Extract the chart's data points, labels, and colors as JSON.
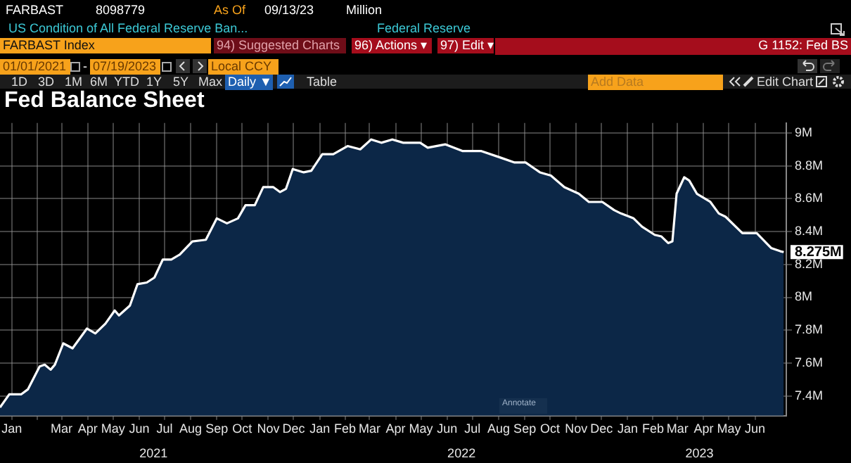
{
  "chart_data": {
    "type": "area",
    "title": "Fed Balance Sheet",
    "x": [
      "2021-01-01",
      "2021-01-12",
      "2021-01-26",
      "2021-02-03",
      "2021-02-17",
      "2021-02-23",
      "2021-03-02",
      "2021-03-07",
      "2021-03-17",
      "2021-03-28",
      "2021-04-14",
      "2021-04-24",
      "2021-05-06",
      "2021-05-17",
      "2021-05-22",
      "2021-06-04",
      "2021-06-13",
      "2021-06-24",
      "2021-07-03",
      "2021-07-13",
      "2021-07-23",
      "2021-08-02",
      "2021-08-17",
      "2021-09-02",
      "2021-09-15",
      "2021-09-27",
      "2021-10-10",
      "2021-10-19",
      "2021-10-30",
      "2021-11-09",
      "2021-11-21",
      "2021-11-29",
      "2021-12-06",
      "2021-12-14",
      "2021-12-27",
      "2022-01-05",
      "2022-01-18",
      "2022-01-31",
      "2022-02-17",
      "2022-03-04",
      "2022-03-17",
      "2022-03-29",
      "2022-04-11",
      "2022-04-24",
      "2022-05-14",
      "2022-05-23",
      "2022-06-13",
      "2022-07-03",
      "2022-07-25",
      "2022-08-17",
      "2022-09-03",
      "2022-09-16",
      "2022-10-03",
      "2022-10-16",
      "2022-11-01",
      "2022-11-18",
      "2022-11-30",
      "2022-12-16",
      "2022-12-30",
      "2023-01-07",
      "2023-01-22",
      "2023-02-01",
      "2023-02-16",
      "2023-02-24",
      "2023-03-04",
      "2023-03-09",
      "2023-03-14",
      "2023-03-23",
      "2023-03-29",
      "2023-04-07",
      "2023-04-23",
      "2023-05-03",
      "2023-05-11",
      "2023-05-31",
      "2023-06-17",
      "2023-07-04",
      "2023-07-15",
      "2023-07-19"
    ],
    "series": [
      {
        "color": "#0c2747",
        "values": [
          7.33,
          7.41,
          7.41,
          7.44,
          7.58,
          7.59,
          7.56,
          7.59,
          7.72,
          7.69,
          7.81,
          7.78,
          7.84,
          7.92,
          7.89,
          7.95,
          8.08,
          8.09,
          8.12,
          8.23,
          8.23,
          8.26,
          8.34,
          8.35,
          8.48,
          8.45,
          8.48,
          8.56,
          8.56,
          8.67,
          8.67,
          8.64,
          8.66,
          8.78,
          8.76,
          8.77,
          8.87,
          8.87,
          8.92,
          8.9,
          8.96,
          8.94,
          8.96,
          8.94,
          8.94,
          8.91,
          8.93,
          8.89,
          8.89,
          8.85,
          8.82,
          8.82,
          8.76,
          8.74,
          8.67,
          8.63,
          8.58,
          8.58,
          8.53,
          8.51,
          8.48,
          8.43,
          8.38,
          8.37,
          8.33,
          8.34,
          8.63,
          8.73,
          8.71,
          8.63,
          8.58,
          8.51,
          8.49,
          8.39,
          8.39,
          8.3,
          8.28,
          8.275
        ]
      }
    ],
    "xlim": [
      "2021-01-01",
      "2023-07-22"
    ],
    "xticks": [
      {
        "value": "2021-01-15",
        "label": "Jan"
      },
      {
        "value": "2021-02-14",
        "label": null
      },
      {
        "value": "2021-03-15",
        "label": "Mar"
      },
      {
        "value": "2021-04-15",
        "label": "Apr"
      },
      {
        "value": "2021-05-15",
        "label": "May"
      },
      {
        "value": "2021-06-15",
        "label": "Jun"
      },
      {
        "value": "2021-07-15",
        "label": "Jul"
      },
      {
        "value": "2021-08-15",
        "label": "Aug"
      },
      {
        "value": "2021-09-15",
        "label": "Sep"
      },
      {
        "value": "2021-10-15",
        "label": "Oct"
      },
      {
        "value": "2021-11-15",
        "label": "Nov"
      },
      {
        "value": "2021-12-15",
        "label": "Dec"
      },
      {
        "value": "2022-01-15",
        "label": "Jan"
      },
      {
        "value": "2022-02-14",
        "label": "Feb"
      },
      {
        "value": "2022-03-15",
        "label": "Mar"
      },
      {
        "value": "2022-04-15",
        "label": "Apr"
      },
      {
        "value": "2022-05-15",
        "label": "May"
      },
      {
        "value": "2022-06-15",
        "label": "Jun"
      },
      {
        "value": "2022-07-15",
        "label": "Jul"
      },
      {
        "value": "2022-08-15",
        "label": "Aug"
      },
      {
        "value": "2022-09-15",
        "label": "Sep"
      },
      {
        "value": "2022-10-15",
        "label": "Oct"
      },
      {
        "value": "2022-11-15",
        "label": "Nov"
      },
      {
        "value": "2022-12-15",
        "label": "Dec"
      },
      {
        "value": "2023-01-15",
        "label": "Jan"
      },
      {
        "value": "2023-02-14",
        "label": "Feb"
      },
      {
        "value": "2023-03-15",
        "label": "Mar"
      },
      {
        "value": "2023-04-15",
        "label": "Apr"
      },
      {
        "value": "2023-05-15",
        "label": "May"
      },
      {
        "value": "2023-06-15",
        "label": "Jun"
      }
    ],
    "x2lim": [
      "2021-01-01",
      "2023-07-22"
    ],
    "x2ticks": [
      {
        "value": "2021-07-02",
        "label": "2021"
      },
      {
        "value": "2022-07-02",
        "label": "2022"
      },
      {
        "value": "2023-04-10",
        "label": "2023"
      }
    ],
    "ylim": [
      7.28,
      9.06
    ],
    "yticks": [
      {
        "value": 7.4,
        "label": "7.4M"
      },
      {
        "value": 7.6,
        "label": "7.6M"
      },
      {
        "value": 7.8,
        "label": "7.8M"
      },
      {
        "value": 8,
        "label": "8M"
      },
      {
        "value": 8.2,
        "label": "8.2M"
      },
      {
        "value": 8.4,
        "label": "8.4M"
      },
      {
        "value": 8.6,
        "label": "8.6M"
      },
      {
        "value": 8.8,
        "label": "8.8M"
      },
      {
        "value": 9,
        "label": "9M"
      }
    ],
    "grid": true,
    "annotations": [
      "FARBAST",
      "8098779",
      "As Of",
      "09/13/23",
      "Million",
      "US Condition of All Federal Reserve Ban...",
      "Federal Reserve",
      "FARBAST Index",
      "94) Suggested Charts",
      "96) Actions ▾",
      "97) Edit ▾",
      "G 1152: Fed BS",
      "01/01/2021",
      "-",
      "07/19/2023",
      "Local CCY",
      "1D",
      "3D",
      "1M",
      "6M",
      "YTD",
      "1Y",
      "5Y",
      "Max",
      "Daily ▼",
      "Table",
      "Add Data",
      "Edit Chart",
      "Annotate",
      {
        "text": "8.275M",
        "x": "2023-07-19",
        "y": 8.275
      }
    ]
  }
}
